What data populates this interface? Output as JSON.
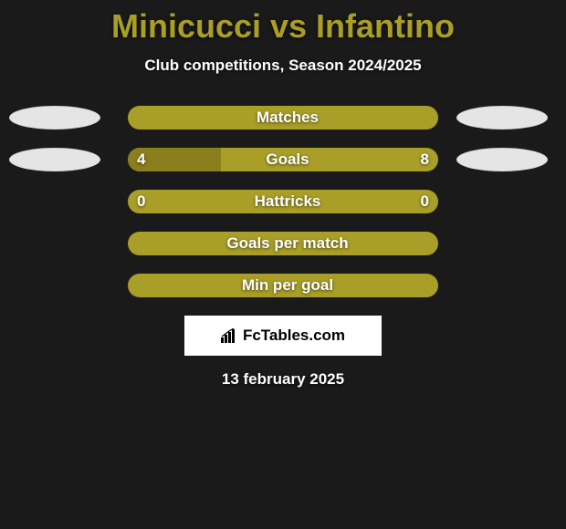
{
  "header": {
    "title": "Minicucci vs Infantino",
    "title_color": "#a99e28",
    "subtitle": "Club competitions, Season 2024/2025"
  },
  "colors": {
    "track": "#a99e28",
    "fill": "#8a7f1c",
    "ellipse_fill": "#e5e5e5",
    "ellipse_border": "#d8d8d8",
    "background": "#1a1a1a"
  },
  "rows": [
    {
      "label": "Matches",
      "left_val": "",
      "right_val": "",
      "left_pct": 0,
      "right_pct": 0,
      "show_ellipse_left": true,
      "show_ellipse_right": true
    },
    {
      "label": "Goals",
      "left_val": "4",
      "right_val": "8",
      "left_pct": 30,
      "right_pct": 0,
      "show_ellipse_left": true,
      "show_ellipse_right": true
    },
    {
      "label": "Hattricks",
      "left_val": "0",
      "right_val": "0",
      "left_pct": 0,
      "right_pct": 0,
      "show_ellipse_left": false,
      "show_ellipse_right": false
    },
    {
      "label": "Goals per match",
      "left_val": "",
      "right_val": "",
      "left_pct": 0,
      "right_pct": 0,
      "show_ellipse_left": false,
      "show_ellipse_right": false
    },
    {
      "label": "Min per goal",
      "left_val": "",
      "right_val": "",
      "left_pct": 0,
      "right_pct": 0,
      "show_ellipse_left": false,
      "show_ellipse_right": false
    }
  ],
  "badge": {
    "text": "FcTables.com"
  },
  "date": "13 february 2025"
}
